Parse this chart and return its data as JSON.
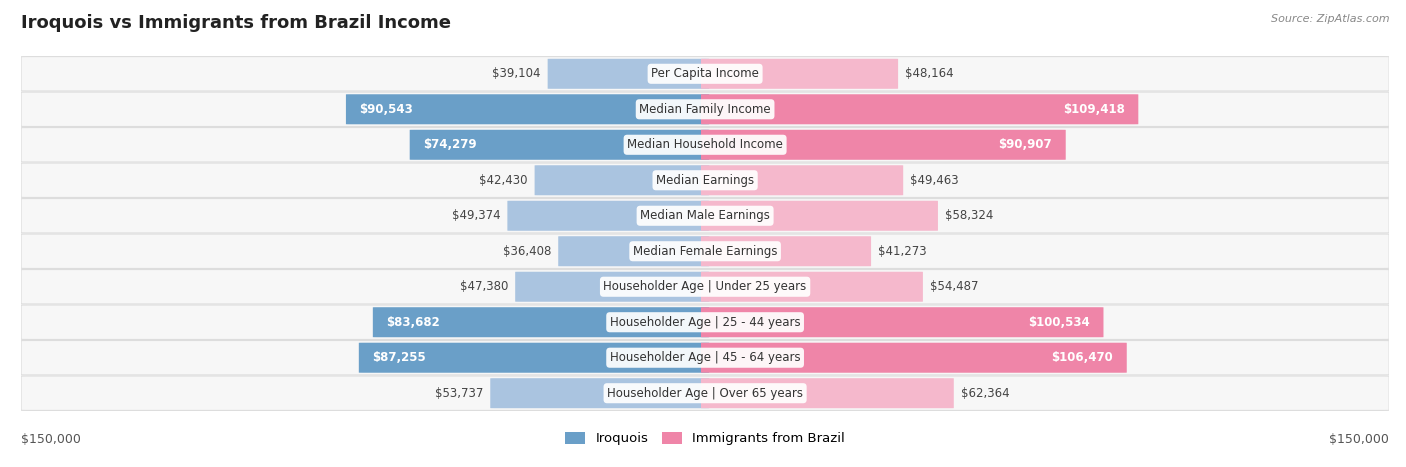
{
  "title": "Iroquois vs Immigrants from Brazil Income",
  "source": "Source: ZipAtlas.com",
  "categories": [
    "Per Capita Income",
    "Median Family Income",
    "Median Household Income",
    "Median Earnings",
    "Median Male Earnings",
    "Median Female Earnings",
    "Householder Age | Under 25 years",
    "Householder Age | 25 - 44 years",
    "Householder Age | 45 - 64 years",
    "Householder Age | Over 65 years"
  ],
  "iroquois_values": [
    39104,
    90543,
    74279,
    42430,
    49374,
    36408,
    47380,
    83682,
    87255,
    53737
  ],
  "brazil_values": [
    48164,
    109418,
    90907,
    49463,
    58324,
    41273,
    54487,
    100534,
    106470,
    62364
  ],
  "iroquois_color_light": "#aac4e0",
  "iroquois_color_dark": "#6a9fc8",
  "brazil_color_light": "#f5b8cc",
  "brazil_color_dark": "#ef85a8",
  "max_value": 150000,
  "background_color": "#ffffff",
  "row_bg": "#f7f7f7",
  "row_border": "#dddddd",
  "label_fontsize": 8.5,
  "title_fontsize": 13,
  "legend_iroquois": "Iroquois",
  "legend_brazil": "Immigrants from Brazil",
  "axis_label_left": "$150,000",
  "axis_label_right": "$150,000",
  "iroq_inside_threshold": 65000,
  "braz_inside_threshold": 80000
}
